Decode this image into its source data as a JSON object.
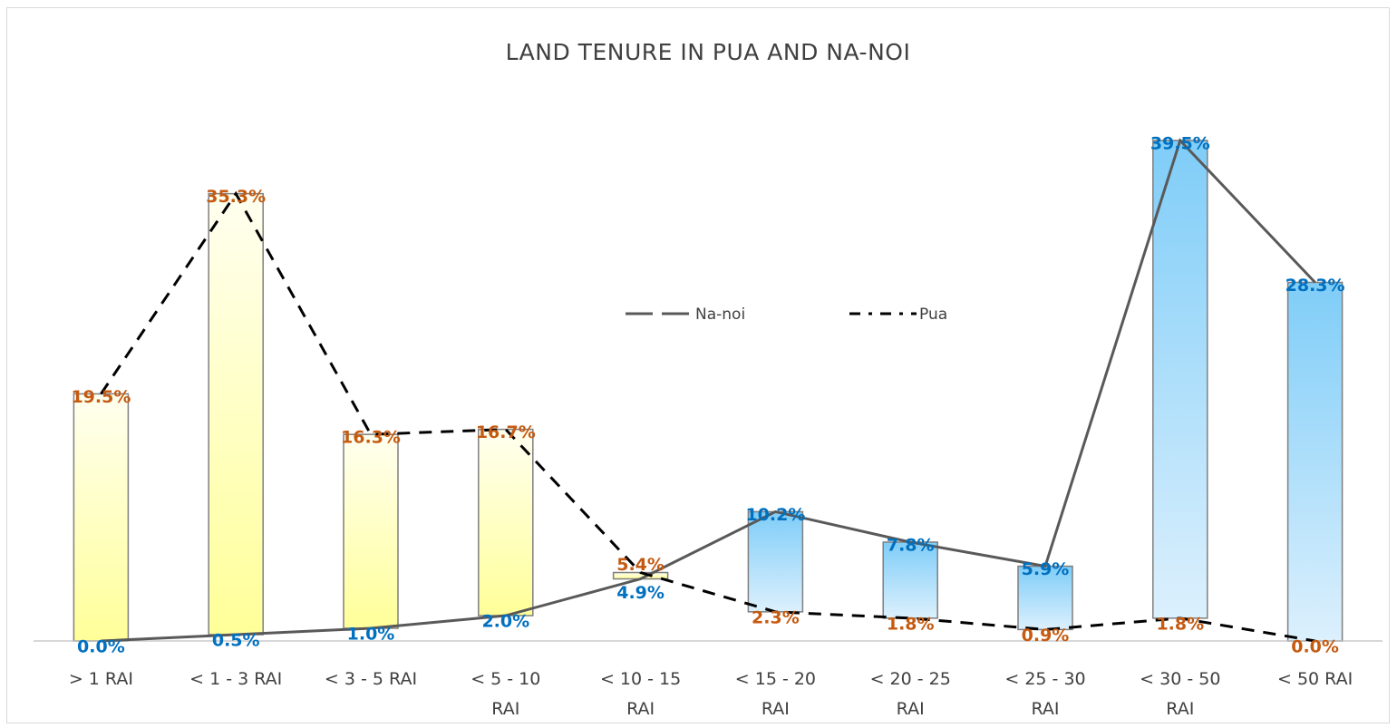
{
  "chart_data": {
    "type": "bar",
    "title": "LAND TENURE IN  PUA AND NA-NOI",
    "categories": [
      [
        "> 1 RAI"
      ],
      [
        "< 1 - 3  RAI"
      ],
      [
        "< 3 - 5  RAI"
      ],
      [
        "< 5 -  10",
        "RAI"
      ],
      [
        "< 10 - 15",
        "RAI"
      ],
      [
        "< 15 - 20",
        "RAI"
      ],
      [
        "< 20 - 25",
        "RAI"
      ],
      [
        "< 25 - 30",
        "RAI"
      ],
      [
        "< 30 - 50",
        "RAI"
      ],
      [
        "< 50  RAI"
      ]
    ],
    "series": [
      {
        "name": "Na-noi",
        "values": [
          0.0,
          0.5,
          1.0,
          2.0,
          4.9,
          10.2,
          7.8,
          5.9,
          39.5,
          28.3
        ],
        "labels": [
          "0.0%",
          "0.5%",
          "1.0%",
          "2.0%",
          "4.9%",
          "10.2%",
          "7.8%",
          "5.9%",
          "39.5%",
          "28.3%"
        ],
        "color": "#595959",
        "label_color": "#0070C0",
        "dash": "long-dash"
      },
      {
        "name": "Pua",
        "values": [
          19.5,
          35.3,
          16.3,
          16.7,
          5.4,
          2.3,
          1.8,
          0.9,
          1.8,
          0.0
        ],
        "labels": [
          "19.5%",
          "35.3%",
          "16.3%",
          "16.7%",
          "5.4%",
          "2.3%",
          "1.8%",
          "0.9%",
          "1.8%",
          "0.0%"
        ],
        "color": "#000000",
        "label_color": "#C55A11",
        "dash": "short-dash"
      }
    ],
    "ylim": [
      0,
      42
    ],
    "grid": false,
    "legend": "center",
    "bar_colors": {
      "pua_higher": "#FFFF99",
      "nanoi_higher": "#7FCDF8"
    }
  }
}
